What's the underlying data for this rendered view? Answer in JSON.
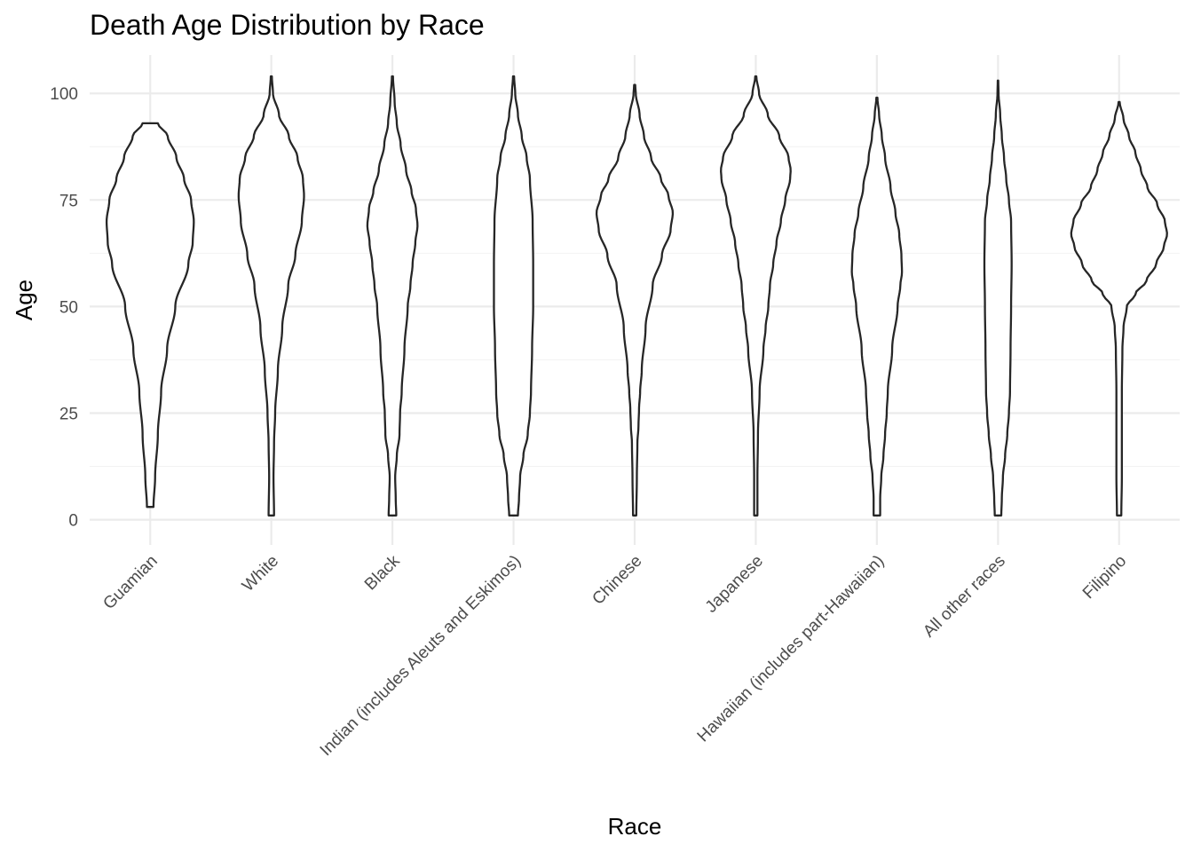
{
  "chart_data": {
    "type": "violin",
    "title": "Death Age Distribution by Race",
    "xlabel": "Race",
    "ylabel": "Age",
    "ylim": [
      -3,
      109
    ],
    "yticks": [
      0,
      25,
      50,
      75,
      100
    ],
    "grid": true,
    "legend": "none",
    "categories": [
      "Guamian",
      "White",
      "Black",
      "Indian (includes Aleuts and Eskimos)",
      "Chinese",
      "Japanese",
      "Hawaiian (includes part-Hawaiian)",
      "All other races",
      "Filipino"
    ],
    "violins": [
      {
        "name": "Guamian",
        "min": 3,
        "max": 93,
        "profile": [
          [
            3,
            0.06
          ],
          [
            10,
            0.09
          ],
          [
            20,
            0.14
          ],
          [
            30,
            0.2
          ],
          [
            40,
            0.31
          ],
          [
            50,
            0.46
          ],
          [
            60,
            0.7
          ],
          [
            65,
            0.78
          ],
          [
            70,
            0.8
          ],
          [
            75,
            0.75
          ],
          [
            80,
            0.62
          ],
          [
            85,
            0.48
          ],
          [
            90,
            0.32
          ],
          [
            93,
            0.14
          ]
        ]
      },
      {
        "name": "White",
        "min": 1,
        "max": 104,
        "profile": [
          [
            1,
            0.05
          ],
          [
            10,
            0.04
          ],
          [
            18,
            0.05
          ],
          [
            25,
            0.07
          ],
          [
            35,
            0.12
          ],
          [
            45,
            0.2
          ],
          [
            55,
            0.31
          ],
          [
            62,
            0.44
          ],
          [
            70,
            0.56
          ],
          [
            76,
            0.6
          ],
          [
            80,
            0.58
          ],
          [
            85,
            0.48
          ],
          [
            90,
            0.32
          ],
          [
            95,
            0.14
          ],
          [
            100,
            0.03
          ],
          [
            104,
            0.01
          ]
        ]
      },
      {
        "name": "Black",
        "min": 1,
        "max": 104,
        "profile": [
          [
            1,
            0.07
          ],
          [
            5,
            0.06
          ],
          [
            10,
            0.05
          ],
          [
            15,
            0.08
          ],
          [
            20,
            0.13
          ],
          [
            25,
            0.14
          ],
          [
            30,
            0.17
          ],
          [
            40,
            0.22
          ],
          [
            50,
            0.28
          ],
          [
            55,
            0.33
          ],
          [
            60,
            0.37
          ],
          [
            65,
            0.42
          ],
          [
            69,
            0.46
          ],
          [
            73,
            0.43
          ],
          [
            77,
            0.35
          ],
          [
            82,
            0.25
          ],
          [
            88,
            0.15
          ],
          [
            93,
            0.08
          ],
          [
            98,
            0.04
          ],
          [
            104,
            0.01
          ]
        ]
      },
      {
        "name": "Indian (includes Aleuts and Eskimos)",
        "min": 1,
        "max": 104,
        "profile": [
          [
            1,
            0.08
          ],
          [
            5,
            0.1
          ],
          [
            10,
            0.12
          ],
          [
            15,
            0.18
          ],
          [
            20,
            0.26
          ],
          [
            25,
            0.3
          ],
          [
            30,
            0.32
          ],
          [
            40,
            0.34
          ],
          [
            50,
            0.36
          ],
          [
            60,
            0.36
          ],
          [
            70,
            0.35
          ],
          [
            80,
            0.3
          ],
          [
            85,
            0.24
          ],
          [
            90,
            0.15
          ],
          [
            95,
            0.08
          ],
          [
            100,
            0.03
          ],
          [
            104,
            0.01
          ]
        ]
      },
      {
        "name": "Chinese",
        "min": 1,
        "max": 102,
        "profile": [
          [
            1,
            0.03
          ],
          [
            10,
            0.04
          ],
          [
            18,
            0.05
          ],
          [
            22,
            0.07
          ],
          [
            26,
            0.08
          ],
          [
            30,
            0.1
          ],
          [
            35,
            0.13
          ],
          [
            45,
            0.2
          ],
          [
            55,
            0.33
          ],
          [
            62,
            0.5
          ],
          [
            68,
            0.66
          ],
          [
            72,
            0.7
          ],
          [
            76,
            0.62
          ],
          [
            80,
            0.48
          ],
          [
            85,
            0.3
          ],
          [
            90,
            0.17
          ],
          [
            95,
            0.09
          ],
          [
            100,
            0.02
          ],
          [
            102,
            0.01
          ]
        ]
      },
      {
        "name": "Japanese",
        "min": 1,
        "max": 104,
        "profile": [
          [
            1,
            0.03
          ],
          [
            10,
            0.03
          ],
          [
            20,
            0.04
          ],
          [
            30,
            0.07
          ],
          [
            40,
            0.14
          ],
          [
            45,
            0.18
          ],
          [
            50,
            0.23
          ],
          [
            55,
            0.26
          ],
          [
            60,
            0.32
          ],
          [
            65,
            0.38
          ],
          [
            70,
            0.46
          ],
          [
            75,
            0.54
          ],
          [
            80,
            0.63
          ],
          [
            82,
            0.64
          ],
          [
            85,
            0.6
          ],
          [
            90,
            0.43
          ],
          [
            95,
            0.22
          ],
          [
            100,
            0.06
          ],
          [
            104,
            0.01
          ]
        ]
      },
      {
        "name": "Hawaiian (includes part-Hawaiian)",
        "min": 1,
        "max": 99,
        "profile": [
          [
            1,
            0.06
          ],
          [
            5,
            0.06
          ],
          [
            10,
            0.08
          ],
          [
            15,
            0.12
          ],
          [
            20,
            0.15
          ],
          [
            25,
            0.18
          ],
          [
            30,
            0.2
          ],
          [
            40,
            0.28
          ],
          [
            50,
            0.38
          ],
          [
            55,
            0.43
          ],
          [
            58,
            0.46
          ],
          [
            62,
            0.45
          ],
          [
            67,
            0.41
          ],
          [
            72,
            0.34
          ],
          [
            78,
            0.25
          ],
          [
            85,
            0.15
          ],
          [
            90,
            0.09
          ],
          [
            95,
            0.04
          ],
          [
            99,
            0.01
          ]
        ]
      },
      {
        "name": "All other races",
        "min": 1,
        "max": 103,
        "profile": [
          [
            1,
            0.06
          ],
          [
            5,
            0.07
          ],
          [
            10,
            0.09
          ],
          [
            15,
            0.13
          ],
          [
            20,
            0.17
          ],
          [
            25,
            0.2
          ],
          [
            30,
            0.22
          ],
          [
            40,
            0.23
          ],
          [
            50,
            0.24
          ],
          [
            60,
            0.25
          ],
          [
            70,
            0.24
          ],
          [
            75,
            0.2
          ],
          [
            80,
            0.15
          ],
          [
            85,
            0.11
          ],
          [
            90,
            0.07
          ],
          [
            95,
            0.04
          ],
          [
            100,
            0.01
          ],
          [
            103,
            0.005
          ]
        ]
      },
      {
        "name": "Filipino",
        "min": 1,
        "max": 98,
        "profile": [
          [
            1,
            0.04
          ],
          [
            10,
            0.05
          ],
          [
            20,
            0.05
          ],
          [
            30,
            0.05
          ],
          [
            40,
            0.06
          ],
          [
            45,
            0.08
          ],
          [
            50,
            0.14
          ],
          [
            53,
            0.3
          ],
          [
            56,
            0.5
          ],
          [
            60,
            0.68
          ],
          [
            64,
            0.82
          ],
          [
            67,
            0.88
          ],
          [
            70,
            0.84
          ],
          [
            74,
            0.7
          ],
          [
            78,
            0.52
          ],
          [
            82,
            0.4
          ],
          [
            86,
            0.3
          ],
          [
            90,
            0.18
          ],
          [
            94,
            0.08
          ],
          [
            98,
            0.01
          ]
        ]
      }
    ]
  }
}
